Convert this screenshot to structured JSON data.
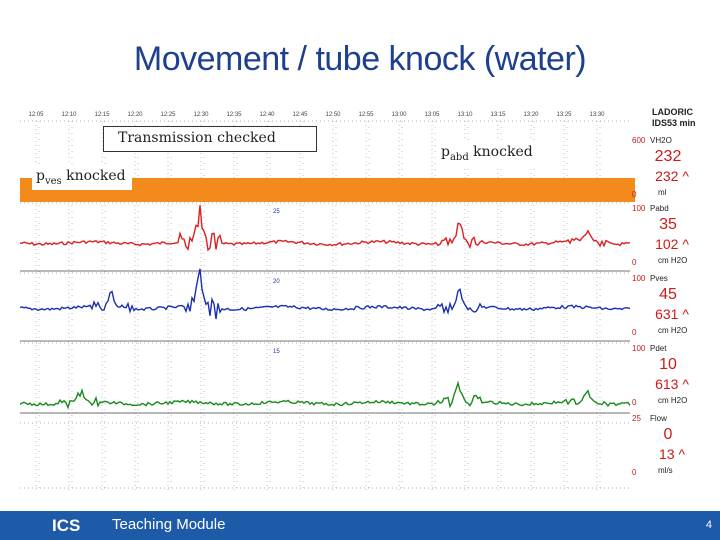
{
  "slide": {
    "title": "Movement / tube knock (water)",
    "footer_logo": "ICS",
    "footer_label": "Teaching Module",
    "page_number": "4"
  },
  "callouts": {
    "transmission": "Transmission checked",
    "pves_main": "p",
    "pves_sub": "ves",
    "pves_rest": " knocked",
    "pabd_main": "p",
    "pabd_sub": "abd",
    "pabd_rest": " knocked"
  },
  "colors": {
    "title": "#1f3f8f",
    "footer": "#1d5aa8",
    "highlight": "#f28a1c",
    "pabd": "#dd1f1f",
    "pves": "#1b2fb0",
    "pdet": "#1a8a1a",
    "grid": "#9a9a9a",
    "panel_text": "#cc1a1a"
  },
  "chart_data": {
    "type": "line",
    "title": "",
    "time_ticks": [
      "12:05",
      "12:10",
      "12:15",
      "12:20",
      "12:25",
      "12:30",
      "12:35",
      "12:40",
      "12:45",
      "12:50",
      "12:55",
      "13:00",
      "13:05",
      "13:10",
      "13:15",
      "13:20",
      "13:25",
      "13:30"
    ],
    "header": {
      "line1": "LADORIC",
      "line2": "IDS53 min"
    },
    "channels": [
      {
        "name": "VH2O",
        "scale_top": "600",
        "scale_bottom": "0",
        "value": "232",
        "max": "232 ^",
        "unit": "ml"
      },
      {
        "name": "Pabd",
        "scale_top": "100",
        "scale_bottom": "0",
        "value": "35",
        "max": "102 ^",
        "unit": "cm H2O"
      },
      {
        "name": "Pves",
        "scale_top": "100",
        "scale_bottom": "0",
        "value": "45",
        "max": "631 ^",
        "unit": "cm H2O"
      },
      {
        "name": "Pdet",
        "scale_top": "100",
        "scale_bottom": "0",
        "value": "10",
        "max": "613 ^",
        "unit": "cm H2O"
      },
      {
        "name": "Flow",
        "scale_top": "25",
        "scale_bottom": "0",
        "value": "0",
        "max": "13 ^",
        "unit": "ml/s"
      }
    ],
    "markers": [
      "25",
      "20",
      "15"
    ],
    "series": [
      {
        "name": "Pabd",
        "spikes": [
          {
            "t": 0.295,
            "amp": 36
          },
          {
            "t": 0.72,
            "amp": 22
          },
          {
            "t": 0.93,
            "amp": 14
          }
        ]
      },
      {
        "name": "Pves",
        "spikes": [
          {
            "t": 0.295,
            "amp": 40
          },
          {
            "t": 0.15,
            "amp": 18
          },
          {
            "t": 0.72,
            "amp": 20
          }
        ]
      },
      {
        "name": "Pdet",
        "spikes": [
          {
            "t": 0.1,
            "amp": 14
          },
          {
            "t": 0.72,
            "amp": 24
          },
          {
            "t": 0.93,
            "amp": 12
          }
        ]
      }
    ]
  }
}
